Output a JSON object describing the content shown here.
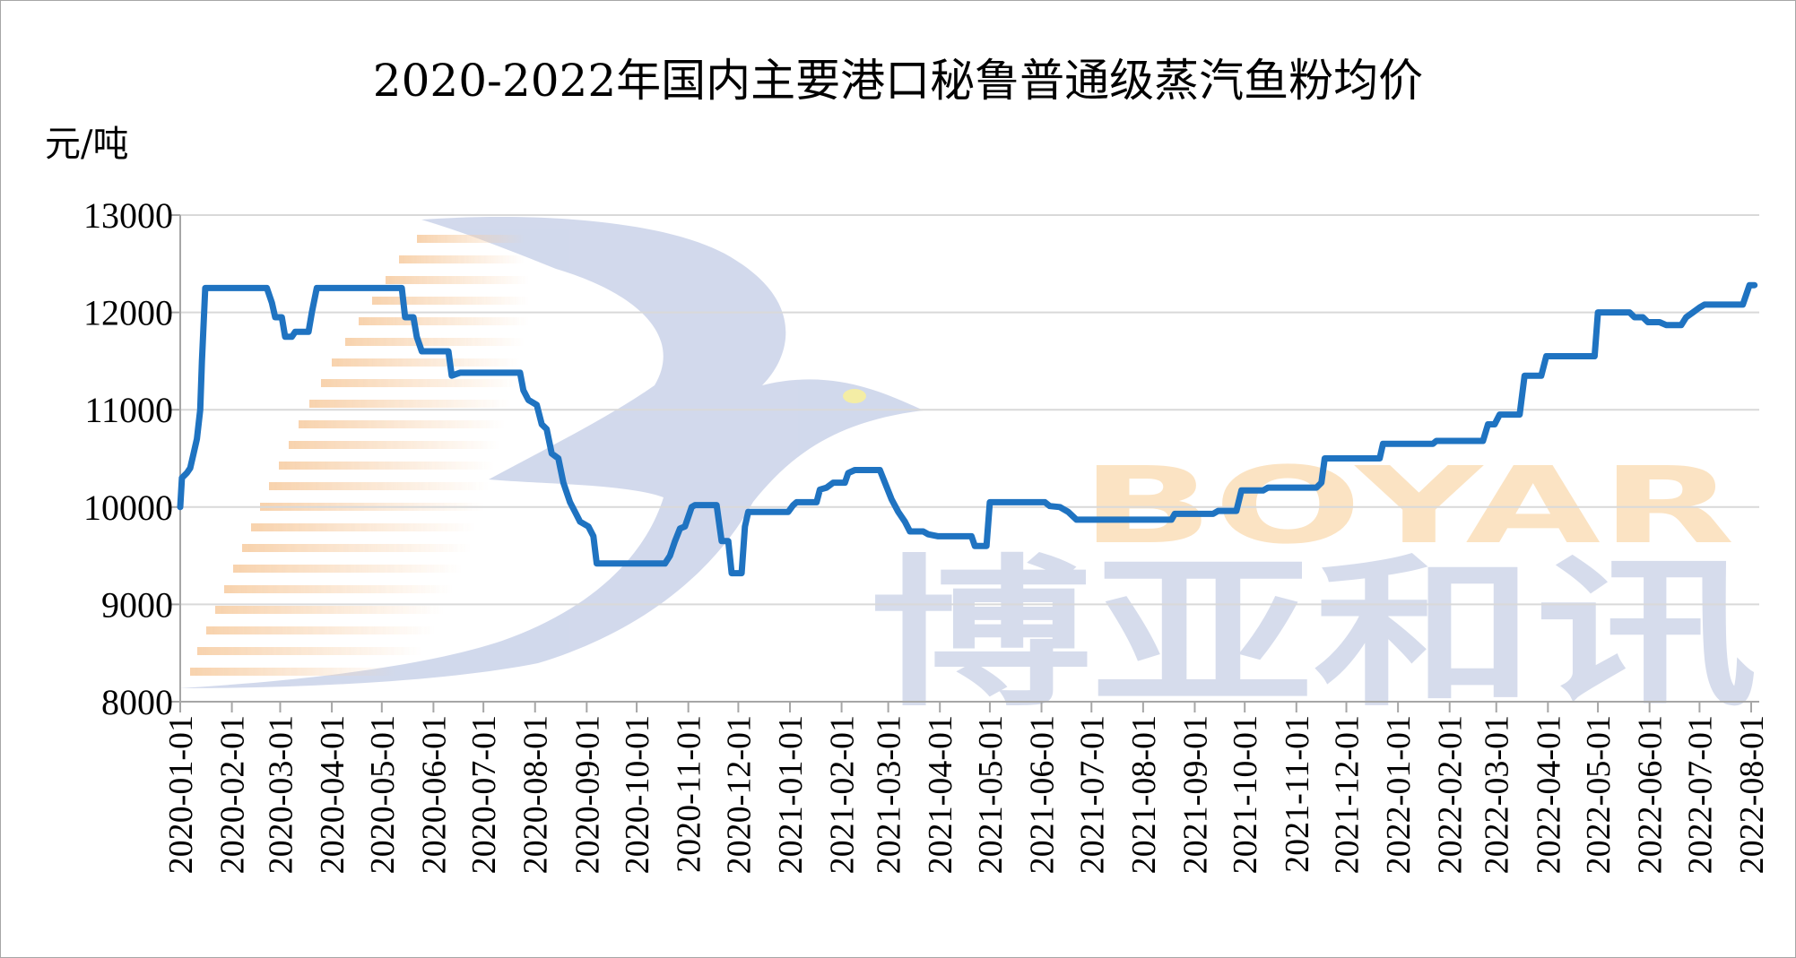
{
  "chart_data": {
    "type": "line",
    "title": "2020-2022年国内主要港口秘鲁普通级蒸汽鱼粉均价",
    "ylabel": "元/吨",
    "xlabel": "",
    "ylim": [
      8000,
      13000
    ],
    "yticks": [
      "13000",
      "12000",
      "11000",
      "10000",
      "9000",
      "8000"
    ],
    "x_range": [
      "2020-01-01",
      "2022-08-01"
    ],
    "xticks": [
      "2020-01-01",
      "2020-02-01",
      "2020-03-01",
      "2020-04-01",
      "2020-05-01",
      "2020-06-01",
      "2020-07-01",
      "2020-08-01",
      "2020-09-01",
      "2020-10-01",
      "2020-11-01",
      "2020-12-01",
      "2021-01-01",
      "2021-02-01",
      "2021-03-01",
      "2021-04-01",
      "2021-05-01",
      "2021-06-01",
      "2021-07-01",
      "2021-08-01",
      "2021-09-01",
      "2021-10-01",
      "2021-11-01",
      "2021-12-01",
      "2022-01-01",
      "2022-02-01",
      "2022-03-01",
      "2022-04-01",
      "2022-05-01",
      "2022-06-01",
      "2022-07-01",
      "2022-08-01"
    ],
    "grid": true,
    "line_color": "#1f73c1",
    "series": [
      {
        "points": [
          [
            "2020-01-01",
            10000
          ],
          [
            "2020-01-02",
            10300
          ],
          [
            "2020-01-05",
            10350
          ],
          [
            "2020-01-07",
            10400
          ],
          [
            "2020-01-09",
            10550
          ],
          [
            "2020-01-11",
            10700
          ],
          [
            "2020-01-13",
            11000
          ],
          [
            "2020-01-14",
            11500
          ],
          [
            "2020-01-16",
            12250
          ],
          [
            "2020-02-22",
            12250
          ],
          [
            "2020-02-25",
            12100
          ],
          [
            "2020-02-27",
            11950
          ],
          [
            "2020-03-02",
            11950
          ],
          [
            "2020-03-04",
            11750
          ],
          [
            "2020-03-08",
            11750
          ],
          [
            "2020-03-10",
            11800
          ],
          [
            "2020-03-18",
            11800
          ],
          [
            "2020-03-20",
            12000
          ],
          [
            "2020-03-23",
            12250
          ],
          [
            "2020-05-13",
            12250
          ],
          [
            "2020-05-15",
            11950
          ],
          [
            "2020-05-20",
            11950
          ],
          [
            "2020-05-22",
            11750
          ],
          [
            "2020-05-25",
            11600
          ],
          [
            "2020-06-10",
            11600
          ],
          [
            "2020-06-12",
            11350
          ],
          [
            "2020-06-17",
            11380
          ],
          [
            "2020-07-23",
            11380
          ],
          [
            "2020-07-25",
            11200
          ],
          [
            "2020-07-28",
            11100
          ],
          [
            "2020-08-02",
            11050
          ],
          [
            "2020-08-05",
            10850
          ],
          [
            "2020-08-08",
            10800
          ],
          [
            "2020-08-11",
            10550
          ],
          [
            "2020-08-15",
            10500
          ],
          [
            "2020-08-18",
            10250
          ],
          [
            "2020-08-22",
            10050
          ],
          [
            "2020-08-25",
            9950
          ],
          [
            "2020-08-28",
            9850
          ],
          [
            "2020-09-02",
            9800
          ],
          [
            "2020-09-05",
            9700
          ],
          [
            "2020-09-07",
            9420
          ],
          [
            "2020-10-18",
            9420
          ],
          [
            "2020-10-21",
            9500
          ],
          [
            "2020-10-24",
            9650
          ],
          [
            "2020-10-27",
            9780
          ],
          [
            "2020-10-30",
            9800
          ],
          [
            "2020-11-03",
            10000
          ],
          [
            "2020-11-05",
            10020
          ],
          [
            "2020-11-18",
            10020
          ],
          [
            "2020-11-21",
            9650
          ],
          [
            "2020-11-25",
            9650
          ],
          [
            "2020-11-27",
            9320
          ],
          [
            "2020-12-03",
            9320
          ],
          [
            "2020-12-05",
            9800
          ],
          [
            "2020-12-07",
            9950
          ],
          [
            "2020-12-31",
            9950
          ],
          [
            "2021-01-03",
            10020
          ],
          [
            "2021-01-05",
            10050
          ],
          [
            "2021-01-17",
            10050
          ],
          [
            "2021-01-19",
            10180
          ],
          [
            "2021-01-23",
            10200
          ],
          [
            "2021-01-27",
            10250
          ],
          [
            "2021-02-03",
            10250
          ],
          [
            "2021-02-05",
            10350
          ],
          [
            "2021-02-09",
            10380
          ],
          [
            "2021-02-24",
            10380
          ],
          [
            "2021-02-27",
            10250
          ],
          [
            "2021-03-03",
            10080
          ],
          [
            "2021-03-07",
            9950
          ],
          [
            "2021-03-11",
            9850
          ],
          [
            "2021-03-14",
            9750
          ],
          [
            "2021-03-22",
            9750
          ],
          [
            "2021-03-25",
            9720
          ],
          [
            "2021-03-31",
            9700
          ],
          [
            "2021-04-20",
            9700
          ],
          [
            "2021-04-22",
            9600
          ],
          [
            "2021-04-29",
            9600
          ],
          [
            "2021-05-01",
            10050
          ],
          [
            "2021-06-03",
            10050
          ],
          [
            "2021-06-06",
            10010
          ],
          [
            "2021-06-12",
            10000
          ],
          [
            "2021-06-17",
            9950
          ],
          [
            "2021-06-22",
            9870
          ],
          [
            "2021-08-18",
            9870
          ],
          [
            "2021-08-20",
            9930
          ],
          [
            "2021-09-12",
            9930
          ],
          [
            "2021-09-15",
            9960
          ],
          [
            "2021-09-26",
            9960
          ],
          [
            "2021-09-29",
            10170
          ],
          [
            "2021-10-12",
            10170
          ],
          [
            "2021-10-15",
            10200
          ],
          [
            "2021-11-13",
            10200
          ],
          [
            "2021-11-16",
            10250
          ],
          [
            "2021-11-18",
            10500
          ],
          [
            "2021-12-21",
            10500
          ],
          [
            "2021-12-23",
            10650
          ],
          [
            "2022-01-22",
            10650
          ],
          [
            "2022-01-24",
            10680
          ],
          [
            "2022-02-21",
            10680
          ],
          [
            "2022-02-24",
            10850
          ],
          [
            "2022-02-28",
            10850
          ],
          [
            "2022-03-03",
            10950
          ],
          [
            "2022-03-15",
            10950
          ],
          [
            "2022-03-18",
            11350
          ],
          [
            "2022-03-28",
            11350
          ],
          [
            "2022-03-31",
            11550
          ],
          [
            "2022-04-29",
            11550
          ],
          [
            "2022-05-01",
            12000
          ],
          [
            "2022-05-20",
            12000
          ],
          [
            "2022-05-23",
            11950
          ],
          [
            "2022-05-28",
            11950
          ],
          [
            "2022-05-31",
            11900
          ],
          [
            "2022-06-07",
            11900
          ],
          [
            "2022-06-11",
            11870
          ],
          [
            "2022-06-20",
            11870
          ],
          [
            "2022-06-23",
            11950
          ],
          [
            "2022-06-27",
            12000
          ],
          [
            "2022-07-01",
            12050
          ],
          [
            "2022-07-04",
            12080
          ],
          [
            "2022-07-27",
            12080
          ],
          [
            "2022-07-31",
            12280
          ],
          [
            "2022-08-03",
            12280
          ]
        ]
      }
    ]
  },
  "watermark": {
    "latin": "BOYAR",
    "chinese": "博亚和讯"
  }
}
